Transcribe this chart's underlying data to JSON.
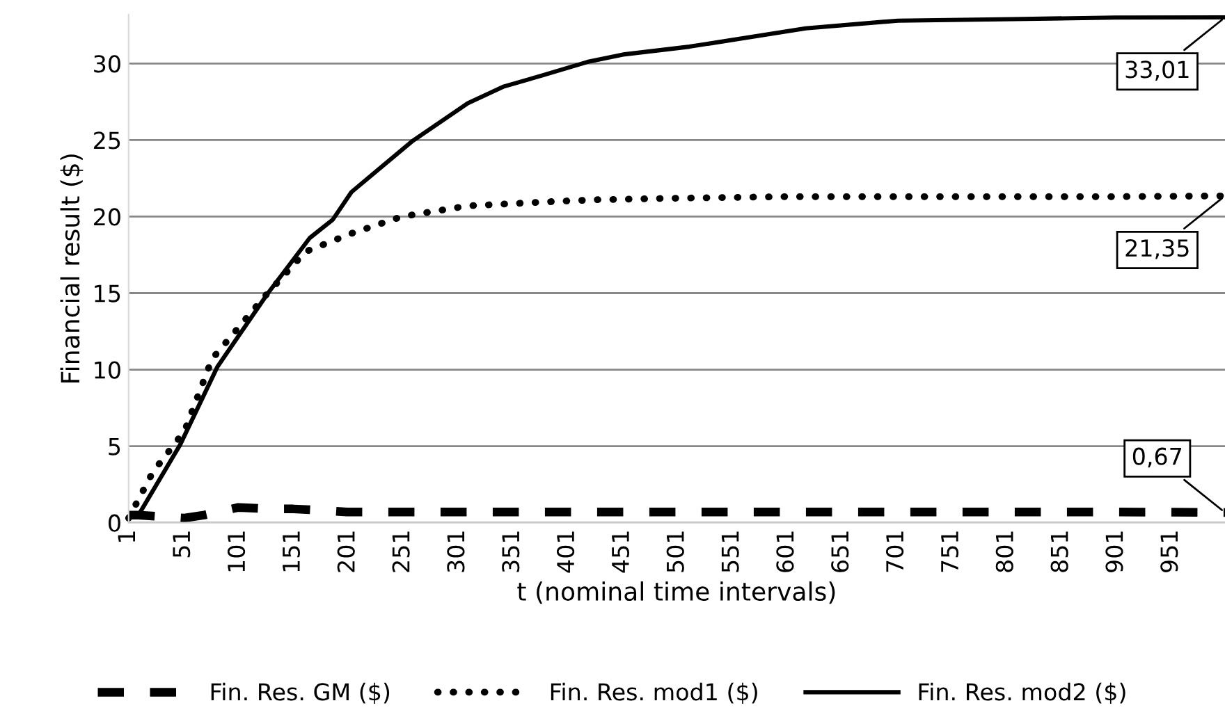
{
  "chart_data": {
    "type": "line",
    "xlabel": "t (nominal time intervals)",
    "ylabel": "Financial result ($)",
    "xlim": [
      1,
      1000
    ],
    "ylim": [
      0,
      33.2
    ],
    "xticks": [
      1,
      51,
      101,
      151,
      201,
      251,
      301,
      351,
      401,
      451,
      501,
      551,
      601,
      651,
      701,
      751,
      801,
      851,
      901,
      951
    ],
    "yticks": [
      0,
      5,
      10,
      15,
      20,
      25,
      30
    ],
    "grid": "y",
    "legend": "bottom",
    "series": [
      {
        "name": "Fin. Res. GM ($)",
        "color": "#000000",
        "line_style": "dashed",
        "x": [
          1,
          10,
          30,
          51,
          70,
          101,
          130,
          151,
          180,
          200,
          250,
          300,
          400,
          500,
          600,
          700,
          800,
          900,
          1000
        ],
        "values": [
          0.5,
          0.5,
          0.4,
          0.3,
          0.5,
          1.0,
          0.9,
          0.9,
          0.8,
          0.7,
          0.7,
          0.7,
          0.7,
          0.7,
          0.7,
          0.7,
          0.7,
          0.7,
          0.67
        ],
        "value_labels": [
          null,
          null,
          null,
          null,
          null,
          null,
          null,
          null,
          null,
          null,
          null,
          null,
          null,
          null,
          null,
          null,
          null,
          null,
          "0,67"
        ]
      },
      {
        "name": "Fin. Res. mod1 ($)",
        "color": "#000000",
        "line_style": "dotted",
        "x": [
          1,
          23,
          52,
          77,
          124,
          162,
          204,
          250,
          310,
          393,
          428,
          500,
          600,
          700,
          800,
          900,
          1000
        ],
        "values": [
          0.3,
          3.3,
          6.0,
          10.7,
          14.7,
          17.7,
          18.9,
          20.0,
          20.7,
          21.0,
          21.1,
          21.2,
          21.3,
          21.3,
          21.3,
          21.3,
          21.35
        ],
        "value_labels": [
          null,
          null,
          null,
          null,
          null,
          null,
          null,
          null,
          null,
          null,
          null,
          null,
          null,
          null,
          null,
          null,
          "21,35"
        ]
      },
      {
        "name": "Fin. Res. mod2 ($)",
        "color": "#000000",
        "line_style": "solid",
        "x": [
          1,
          10,
          48,
          82,
          128,
          166,
          187,
          204,
          259,
          310,
          343,
          377,
          419,
          453,
          512,
          618,
          702,
          807,
          900,
          1000
        ],
        "values": [
          0.3,
          0.5,
          5.1,
          10.2,
          15.0,
          18.6,
          19.8,
          21.6,
          24.9,
          27.4,
          28.5,
          29.2,
          30.1,
          30.6,
          31.1,
          32.3,
          32.8,
          32.9,
          33.0,
          33.01
        ],
        "value_labels": [
          null,
          null,
          null,
          null,
          null,
          null,
          null,
          null,
          null,
          null,
          null,
          null,
          null,
          null,
          null,
          null,
          null,
          null,
          null,
          "33,01"
        ]
      }
    ]
  }
}
